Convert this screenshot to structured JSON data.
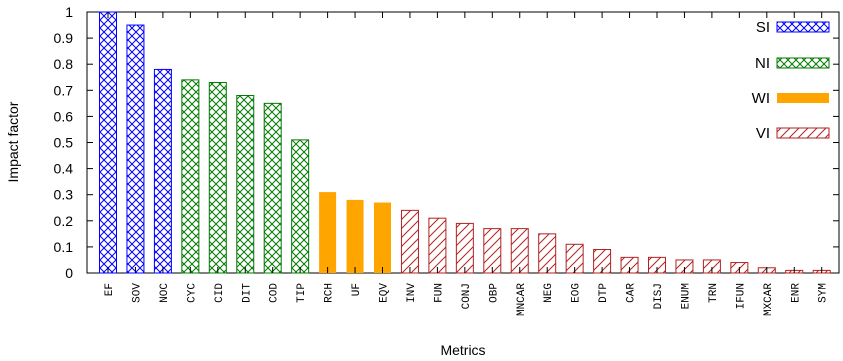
{
  "chart_data": {
    "type": "bar",
    "xlabel": "Metrics",
    "ylabel": "Impact factor",
    "ylim": [
      0,
      1
    ],
    "yticks": [
      "0",
      "0.1",
      "0.2",
      "0.3",
      "0.4",
      "0.5",
      "0.6",
      "0.7",
      "0.8",
      "0.9",
      "1"
    ],
    "grid": false,
    "legend_position": "right",
    "categories": [
      "EF",
      "SOV",
      "NOC",
      "CYC",
      "CID",
      "DIT",
      "COD",
      "TIP",
      "RCH",
      "UF",
      "EQV",
      "INV",
      "FUN",
      "CONJ",
      "OBP",
      "MNCAR",
      "NEG",
      "EOG",
      "DTP",
      "CAR",
      "DISJ",
      "ENUM",
      "TRN",
      "IFUN",
      "MXCAR",
      "ENR",
      "SYM"
    ],
    "values": [
      1.0,
      0.95,
      0.78,
      0.74,
      0.73,
      0.68,
      0.65,
      0.51,
      0.31,
      0.28,
      0.27,
      0.24,
      0.21,
      0.19,
      0.17,
      0.17,
      0.15,
      0.11,
      0.09,
      0.06,
      0.06,
      0.05,
      0.05,
      0.04,
      0.02,
      0.01,
      0.01
    ],
    "groups": [
      "SI",
      "SI",
      "SI",
      "NI",
      "NI",
      "NI",
      "NI",
      "NI",
      "WI",
      "WI",
      "WI",
      "VI",
      "VI",
      "VI",
      "VI",
      "VI",
      "VI",
      "VI",
      "VI",
      "VI",
      "VI",
      "VI",
      "VI",
      "VI",
      "VI",
      "VI",
      "VI"
    ],
    "series": [
      {
        "name": "SI",
        "color": "#0000ff",
        "pattern": "crosshatch"
      },
      {
        "name": "NI",
        "color": "#007a00",
        "pattern": "crosshatch"
      },
      {
        "name": "WI",
        "color": "#ffa500",
        "pattern": "solid"
      },
      {
        "name": "VI",
        "color": "#b22222",
        "pattern": "diagonal"
      }
    ]
  }
}
